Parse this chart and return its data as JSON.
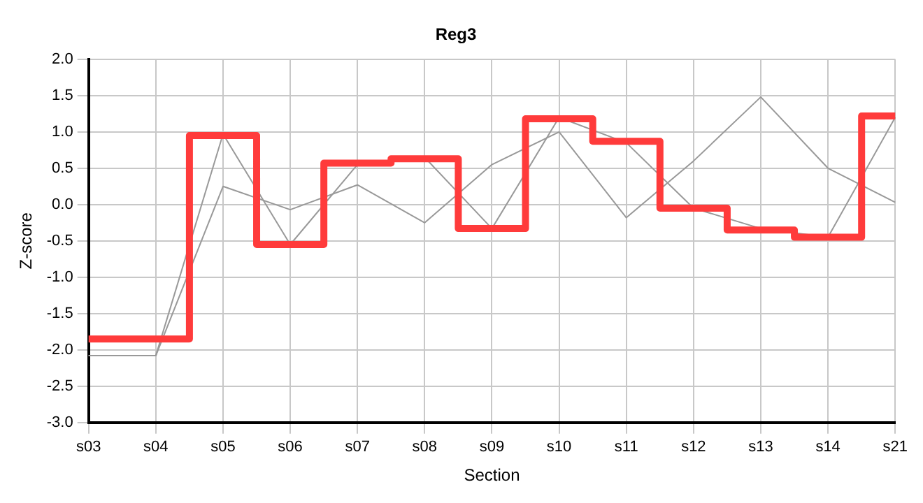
{
  "chart_data": {
    "type": "line",
    "title": "Reg3",
    "xlabel": "Section",
    "ylabel": "Z-score",
    "categories": [
      "s03",
      "s04",
      "s05",
      "s06",
      "s07",
      "s08",
      "s09",
      "s10",
      "s11",
      "s12",
      "s13",
      "s14",
      "s21"
    ],
    "series": [
      {
        "type": "step",
        "color": "#ff3b3b",
        "values": [
          -1.85,
          -1.85,
          0.95,
          -0.55,
          0.57,
          0.63,
          -0.33,
          1.18,
          0.87,
          -0.05,
          -0.35,
          -0.45,
          1.22
        ]
      },
      {
        "type": "line",
        "color": "#999999",
        "values": [
          -2.08,
          -2.08,
          0.97,
          -0.55,
          0.55,
          0.65,
          -0.33,
          1.2,
          0.85,
          -0.05,
          -0.33,
          -0.45,
          1.2
        ]
      },
      {
        "type": "line",
        "color": "#999999",
        "values": [
          -2.08,
          -2.08,
          0.25,
          -0.07,
          0.27,
          -0.25,
          0.55,
          1.0,
          -0.18,
          0.6,
          1.48,
          0.5,
          0.03
        ]
      }
    ],
    "ylim": [
      -3,
      2
    ],
    "yticks": [
      {
        "value": -3,
        "label": "-3.0"
      },
      {
        "value": -2.5,
        "label": "-2.5"
      },
      {
        "value": -2,
        "label": "-2.0"
      },
      {
        "value": -1.5,
        "label": "-1.5"
      },
      {
        "value": -1,
        "label": "-1.0"
      },
      {
        "value": -0.5,
        "label": "-0.5"
      },
      {
        "value": 0,
        "label": "0.0"
      },
      {
        "value": 0.5,
        "label": "0.5"
      },
      {
        "value": 1,
        "label": "1.0"
      },
      {
        "value": 1.5,
        "label": "1.5"
      },
      {
        "value": 2,
        "label": "2.0"
      }
    ],
    "grid": true,
    "legend": false,
    "marker": "none",
    "line_style": "solid"
  }
}
